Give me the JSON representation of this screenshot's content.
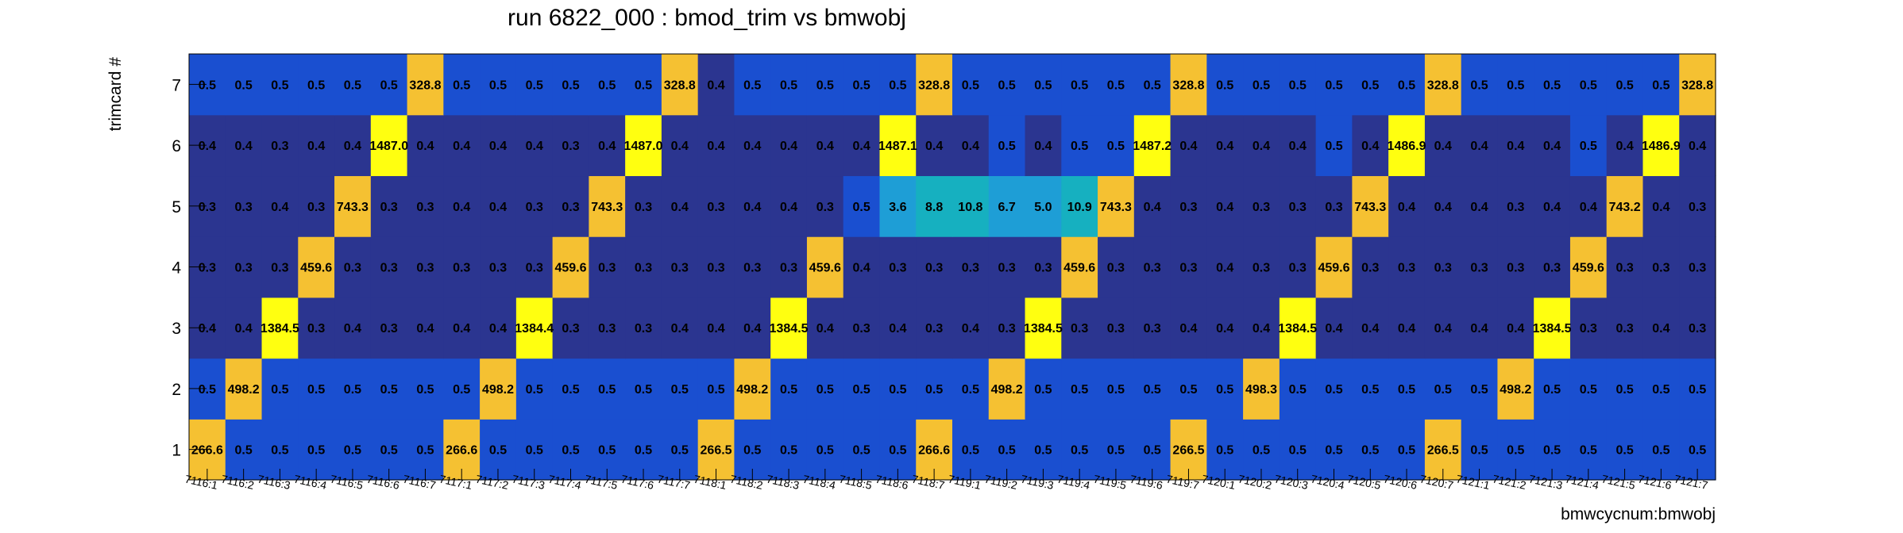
{
  "chart_data": {
    "type": "heatmap",
    "title": "run 6822_000 : bmod_trim vs bmwobj",
    "xlabel": "bmwcycnum:bmwobj",
    "ylabel": "trimcard #",
    "x_categories": [
      "7116:1",
      "7116:2",
      "7116:3",
      "7116:4",
      "7116:5",
      "7116:6",
      "7116:7",
      "7117:1",
      "7117:2",
      "7117:3",
      "7117:4",
      "7117:5",
      "7117:6",
      "7117:7",
      "7118:1",
      "7118:2",
      "7118:3",
      "7118:4",
      "7118:5",
      "7118:6",
      "7118:7",
      "7119:1",
      "7119:2",
      "7119:3",
      "7119:4",
      "7119:5",
      "7119:6",
      "7119:7",
      "7120:1",
      "7120:2",
      "7120:3",
      "7120:4",
      "7120:5",
      "7120:6",
      "7120:7",
      "7121:1",
      "7121:2",
      "7121:3",
      "7121:4",
      "7121:5",
      "7121:6",
      "7121:7"
    ],
    "y_categories": [
      "1",
      "2",
      "3",
      "4",
      "5",
      "6",
      "7"
    ],
    "values": [
      [
        "266.6",
        "0.5",
        "0.5",
        "0.5",
        "0.5",
        "0.5",
        "0.5",
        "266.6",
        "0.5",
        "0.5",
        "0.5",
        "0.5",
        "0.5",
        "0.5",
        "266.5",
        "0.5",
        "0.5",
        "0.5",
        "0.5",
        "0.5",
        "266.6",
        "0.5",
        "0.5",
        "0.5",
        "0.5",
        "0.5",
        "0.5",
        "266.5",
        "0.5",
        "0.5",
        "0.5",
        "0.5",
        "0.5",
        "0.5",
        "266.5",
        "0.5",
        "0.5",
        "0.5",
        "0.5",
        "0.5",
        "0.5",
        "0.5"
      ],
      [
        "0.5",
        "498.2",
        "0.5",
        "0.5",
        "0.5",
        "0.5",
        "0.5",
        "0.5",
        "498.2",
        "0.5",
        "0.5",
        "0.5",
        "0.5",
        "0.5",
        "0.5",
        "498.2",
        "0.5",
        "0.5",
        "0.5",
        "0.5",
        "0.5",
        "0.5",
        "498.2",
        "0.5",
        "0.5",
        "0.5",
        "0.5",
        "0.5",
        "0.5",
        "498.3",
        "0.5",
        "0.5",
        "0.5",
        "0.5",
        "0.5",
        "0.5",
        "498.2",
        "0.5",
        "0.5",
        "0.5",
        "0.5",
        "0.5"
      ],
      [
        "0.4",
        "0.4",
        "1384.5",
        "0.3",
        "0.4",
        "0.3",
        "0.4",
        "0.4",
        "0.4",
        "1384.4",
        "0.3",
        "0.3",
        "0.3",
        "0.4",
        "0.4",
        "0.4",
        "1384.5",
        "0.4",
        "0.3",
        "0.4",
        "0.3",
        "0.4",
        "0.3",
        "1384.5",
        "0.3",
        "0.3",
        "0.3",
        "0.4",
        "0.4",
        "0.4",
        "1384.5",
        "0.4",
        "0.4",
        "0.4",
        "0.4",
        "0.4",
        "0.4",
        "1384.5",
        "0.3",
        "0.3",
        "0.4",
        "0.3"
      ],
      [
        "0.3",
        "0.3",
        "0.3",
        "459.6",
        "0.3",
        "0.3",
        "0.3",
        "0.3",
        "0.3",
        "0.3",
        "459.6",
        "0.3",
        "0.3",
        "0.3",
        "0.3",
        "0.3",
        "0.3",
        "459.6",
        "0.4",
        "0.3",
        "0.3",
        "0.3",
        "0.3",
        "0.3",
        "459.6",
        "0.3",
        "0.3",
        "0.3",
        "0.4",
        "0.3",
        "0.3",
        "459.6",
        "0.3",
        "0.3",
        "0.3",
        "0.3",
        "0.3",
        "0.3",
        "459.6",
        "0.3",
        "0.3",
        "0.3"
      ],
      [
        "0.3",
        "0.3",
        "0.4",
        "0.3",
        "743.3",
        "0.3",
        "0.3",
        "0.4",
        "0.4",
        "0.3",
        "0.3",
        "743.3",
        "0.3",
        "0.4",
        "0.3",
        "0.4",
        "0.4",
        "0.3",
        "0.5",
        "3.6",
        "8.8",
        "10.8",
        "6.7",
        "5.0",
        "10.9",
        "743.3",
        "0.4",
        "0.3",
        "0.4",
        "0.3",
        "0.3",
        "0.3",
        "743.3",
        "0.4",
        "0.4",
        "0.4",
        "0.3",
        "0.4",
        "0.4",
        "743.2",
        "0.4",
        "0.3"
      ],
      [
        "0.4",
        "0.4",
        "0.3",
        "0.4",
        "0.4",
        "1487.0",
        "0.4",
        "0.4",
        "0.4",
        "0.4",
        "0.3",
        "0.4",
        "1487.0",
        "0.4",
        "0.4",
        "0.4",
        "0.4",
        "0.4",
        "0.4",
        "1487.1",
        "0.4",
        "0.4",
        "0.5",
        "0.4",
        "0.5",
        "0.5",
        "1487.2",
        "0.4",
        "0.4",
        "0.4",
        "0.4",
        "0.5",
        "0.4",
        "1486.9",
        "0.4",
        "0.4",
        "0.4",
        "0.4",
        "0.5",
        "0.4",
        "1486.9",
        "0.4"
      ],
      [
        "0.5",
        "0.5",
        "0.5",
        "0.5",
        "0.5",
        "0.5",
        "328.8",
        "0.5",
        "0.5",
        "0.5",
        "0.5",
        "0.5",
        "0.5",
        "328.8",
        "0.4",
        "0.5",
        "0.5",
        "0.5",
        "0.5",
        "0.5",
        "328.8",
        "0.5",
        "0.5",
        "0.5",
        "0.5",
        "0.5",
        "0.5",
        "328.8",
        "0.5",
        "0.5",
        "0.5",
        "0.5",
        "0.5",
        "0.5",
        "328.8",
        "0.5",
        "0.5",
        "0.5",
        "0.5",
        "0.5",
        "0.5",
        "328.8"
      ]
    ],
    "grid": false,
    "legend": "none",
    "colors": {
      "level_0": "#2b3590",
      "level_1": "#1a4fd0",
      "level_2": "#1e9ed6",
      "level_3": "#16b0c0",
      "high_mid": "#f5c132",
      "high": "#ffff10",
      "text": "#000000"
    }
  }
}
